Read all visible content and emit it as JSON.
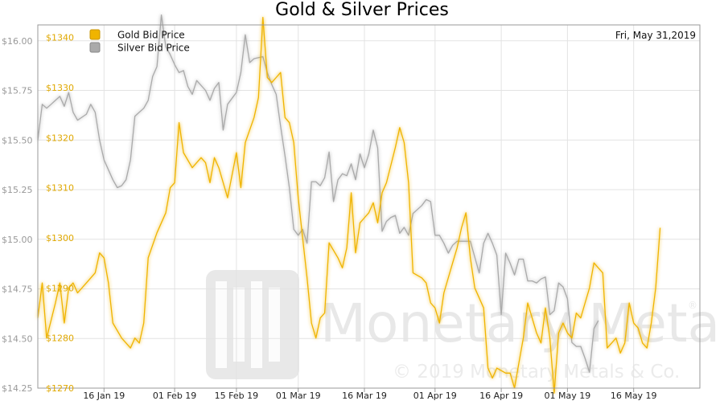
{
  "chart_data": {
    "type": "line",
    "title": "Gold & Silver Prices",
    "date_label": "Fri, May 31,2019",
    "watermark": {
      "brand": "Monetary Metals",
      "registered": "®",
      "copyright": "© 2019 Monetary Metals & Co."
    },
    "grid": true,
    "legend": {
      "placement": "top-left"
    },
    "x_axis": {
      "ticks": [
        "16 Jan 19",
        "01 Feb 19",
        "15 Feb 19",
        "01 Mar 19",
        "16 Mar 19",
        "01 Apr 19",
        "16 Apr 19",
        "01 May 19",
        "16 May 19"
      ],
      "tick_days": [
        15,
        31,
        45,
        59,
        74,
        90,
        105,
        120,
        135
      ],
      "range_days": [
        0,
        150
      ]
    },
    "y_axes": {
      "silver": {
        "ticks": [
          "$14.25",
          "$14.50",
          "$14.75",
          "$15.00",
          "$15.25",
          "$15.50",
          "$15.75",
          "$16.00"
        ],
        "range": [
          14.25,
          16.08
        ]
      },
      "gold": {
        "ticks": [
          "$1270",
          "$1280",
          "$1290",
          "$1300",
          "$1310",
          "$1320",
          "$1330",
          "$1340"
        ],
        "range": [
          1270,
          1342.5
        ]
      }
    },
    "colors": {
      "gold": "#f0b400",
      "silver": "#aaaaaa",
      "gold_label": "#e0a800",
      "silver_label": "#999999"
    },
    "series": [
      {
        "name": "Gold Bid Price",
        "axis": "gold",
        "points": [
          [
            0,
            1284
          ],
          [
            1,
            1291
          ],
          [
            2,
            1280
          ],
          [
            4,
            1287
          ],
          [
            5,
            1291
          ],
          [
            6,
            1283
          ],
          [
            7,
            1290
          ],
          [
            8,
            1291
          ],
          [
            9,
            1289
          ],
          [
            11,
            1291
          ],
          [
            13,
            1293
          ],
          [
            14,
            1297
          ],
          [
            15,
            1296
          ],
          [
            16,
            1291
          ],
          [
            17,
            1283
          ],
          [
            19,
            1280
          ],
          [
            21,
            1278
          ],
          [
            22,
            1280
          ],
          [
            23,
            1279
          ],
          [
            24,
            1283
          ],
          [
            25,
            1296
          ],
          [
            27,
            1301
          ],
          [
            29,
            1305
          ],
          [
            30,
            1310
          ],
          [
            31,
            1311
          ],
          [
            32,
            1323
          ],
          [
            33,
            1317
          ],
          [
            35,
            1314
          ],
          [
            37,
            1316
          ],
          [
            38,
            1315
          ],
          [
            39,
            1311
          ],
          [
            40,
            1316
          ],
          [
            41,
            1314
          ],
          [
            43,
            1308
          ],
          [
            45,
            1317
          ],
          [
            46,
            1310
          ],
          [
            47,
            1319
          ],
          [
            49,
            1324
          ],
          [
            50,
            1328
          ],
          [
            51,
            1344
          ],
          [
            52,
            1332
          ],
          [
            53,
            1331
          ],
          [
            54,
            1332
          ],
          [
            55,
            1333
          ],
          [
            56,
            1324
          ],
          [
            57,
            1323
          ],
          [
            58,
            1319
          ],
          [
            59,
            1308
          ],
          [
            60,
            1300
          ],
          [
            61,
            1292
          ],
          [
            62,
            1283
          ],
          [
            63,
            1280
          ],
          [
            64,
            1284
          ],
          [
            65,
            1285
          ],
          [
            66,
            1299
          ],
          [
            68,
            1296
          ],
          [
            69,
            1294
          ],
          [
            70,
            1298
          ],
          [
            71,
            1309
          ],
          [
            72,
            1297
          ],
          [
            73,
            1303
          ],
          [
            74,
            1304
          ],
          [
            75,
            1305
          ],
          [
            76,
            1307
          ],
          [
            77,
            1303
          ],
          [
            78,
            1309
          ],
          [
            79,
            1311
          ],
          [
            81,
            1318
          ],
          [
            82,
            1322
          ],
          [
            83,
            1319
          ],
          [
            84,
            1311
          ],
          [
            85,
            1293
          ],
          [
            87,
            1292
          ],
          [
            88,
            1291
          ],
          [
            89,
            1287
          ],
          [
            90,
            1286
          ],
          [
            91,
            1283
          ],
          [
            92,
            1289
          ],
          [
            94,
            1295
          ],
          [
            95,
            1298
          ],
          [
            96,
            1302
          ],
          [
            97,
            1305
          ],
          [
            98,
            1296
          ],
          [
            99,
            1290
          ],
          [
            101,
            1286
          ],
          [
            102,
            1274
          ],
          [
            103,
            1272
          ],
          [
            104,
            1274
          ],
          [
            106,
            1273
          ],
          [
            107,
            1273
          ],
          [
            108,
            1270
          ],
          [
            109,
            1275
          ],
          [
            110,
            1280
          ],
          [
            111,
            1287
          ],
          [
            112,
            1284
          ],
          [
            113,
            1281
          ],
          [
            114,
            1279
          ],
          [
            115,
            1286
          ],
          [
            116,
            1280
          ],
          [
            117,
            1269
          ],
          [
            118,
            1281
          ],
          [
            119,
            1283
          ],
          [
            120,
            1281
          ],
          [
            121,
            1280
          ],
          [
            122,
            1285
          ],
          [
            123,
            1284
          ],
          [
            124,
            1287
          ],
          [
            125,
            1290
          ],
          [
            126,
            1295
          ],
          [
            127,
            1294
          ],
          [
            128,
            1293
          ],
          [
            129,
            1278
          ],
          [
            130,
            1279
          ],
          [
            131,
            1280
          ],
          [
            132,
            1277
          ],
          [
            133,
            1279
          ],
          [
            134,
            1287
          ],
          [
            135,
            1283
          ],
          [
            136,
            1282
          ],
          [
            137,
            1279
          ],
          [
            138,
            1278
          ],
          [
            139,
            1283
          ],
          [
            140,
            1290
          ],
          [
            141,
            1302
          ]
        ]
      },
      {
        "name": "Silver Bid Price",
        "axis": "silver",
        "points": [
          [
            0,
            15.5
          ],
          [
            1,
            15.68
          ],
          [
            2,
            15.66
          ],
          [
            3,
            15.68
          ],
          [
            4,
            15.7
          ],
          [
            5,
            15.72
          ],
          [
            6,
            15.67
          ],
          [
            7,
            15.74
          ],
          [
            8,
            15.64
          ],
          [
            9,
            15.6
          ],
          [
            11,
            15.63
          ],
          [
            12,
            15.68
          ],
          [
            13,
            15.64
          ],
          [
            14,
            15.5
          ],
          [
            15,
            15.4
          ],
          [
            17,
            15.3
          ],
          [
            18,
            15.26
          ],
          [
            19,
            15.27
          ],
          [
            20,
            15.3
          ],
          [
            21,
            15.4
          ],
          [
            22,
            15.62
          ],
          [
            24,
            15.66
          ],
          [
            25,
            15.7
          ],
          [
            26,
            15.82
          ],
          [
            27,
            15.87
          ],
          [
            28,
            16.13
          ],
          [
            29,
            15.97
          ],
          [
            30,
            15.93
          ],
          [
            31,
            15.88
          ],
          [
            32,
            15.84
          ],
          [
            33,
            15.85
          ],
          [
            34,
            15.77
          ],
          [
            35,
            15.73
          ],
          [
            36,
            15.8
          ],
          [
            38,
            15.75
          ],
          [
            39,
            15.7
          ],
          [
            40,
            15.76
          ],
          [
            41,
            15.79
          ],
          [
            42,
            15.55
          ],
          [
            43,
            15.68
          ],
          [
            45,
            15.74
          ],
          [
            46,
            15.84
          ],
          [
            47,
            16.03
          ],
          [
            48,
            15.89
          ],
          [
            49,
            15.91
          ],
          [
            51,
            15.92
          ],
          [
            52,
            15.84
          ],
          [
            53,
            15.78
          ],
          [
            54,
            15.73
          ],
          [
            55,
            15.57
          ],
          [
            56,
            15.42
          ],
          [
            57,
            15.26
          ],
          [
            58,
            15.05
          ],
          [
            59,
            15.02
          ],
          [
            60,
            15.05
          ],
          [
            61,
            14.98
          ],
          [
            62,
            15.29
          ],
          [
            63,
            15.29
          ],
          [
            64,
            15.27
          ],
          [
            65,
            15.31
          ],
          [
            66,
            15.44
          ],
          [
            67,
            15.19
          ],
          [
            68,
            15.3
          ],
          [
            69,
            15.33
          ],
          [
            70,
            15.32
          ],
          [
            71,
            15.38
          ],
          [
            72,
            15.3
          ],
          [
            73,
            15.43
          ],
          [
            74,
            15.36
          ],
          [
            75,
            15.43
          ],
          [
            76,
            15.55
          ],
          [
            77,
            15.46
          ],
          [
            78,
            15.04
          ],
          [
            79,
            15.09
          ],
          [
            80,
            15.11
          ],
          [
            81,
            15.12
          ],
          [
            82,
            15.03
          ],
          [
            83,
            15.06
          ],
          [
            84,
            15.02
          ],
          [
            85,
            15.13
          ],
          [
            86,
            15.15
          ],
          [
            87,
            15.17
          ],
          [
            88,
            15.2
          ],
          [
            89,
            15.19
          ],
          [
            90,
            15.02
          ],
          [
            91,
            15.02
          ],
          [
            92,
            14.98
          ],
          [
            93,
            14.93
          ],
          [
            94,
            14.97
          ],
          [
            95,
            14.99
          ],
          [
            96,
            14.99
          ],
          [
            98,
            14.99
          ],
          [
            99,
            14.91
          ],
          [
            100,
            14.83
          ],
          [
            101,
            14.98
          ],
          [
            102,
            15.03
          ],
          [
            103,
            14.98
          ],
          [
            104,
            14.92
          ],
          [
            105,
            14.62
          ],
          [
            106,
            14.93
          ],
          [
            107,
            14.88
          ],
          [
            108,
            14.82
          ],
          [
            109,
            14.9
          ],
          [
            110,
            14.9
          ],
          [
            111,
            14.79
          ],
          [
            112,
            14.79
          ],
          [
            113,
            14.78
          ],
          [
            114,
            14.8
          ],
          [
            115,
            14.81
          ],
          [
            116,
            14.62
          ],
          [
            117,
            14.64
          ],
          [
            118,
            14.78
          ],
          [
            119,
            14.76
          ],
          [
            120,
            14.7
          ],
          [
            121,
            14.48
          ],
          [
            122,
            14.46
          ],
          [
            123,
            14.46
          ],
          [
            124,
            14.4
          ],
          [
            125,
            14.33
          ],
          [
            126,
            14.55
          ],
          [
            127,
            14.59
          ]
        ]
      }
    ]
  }
}
